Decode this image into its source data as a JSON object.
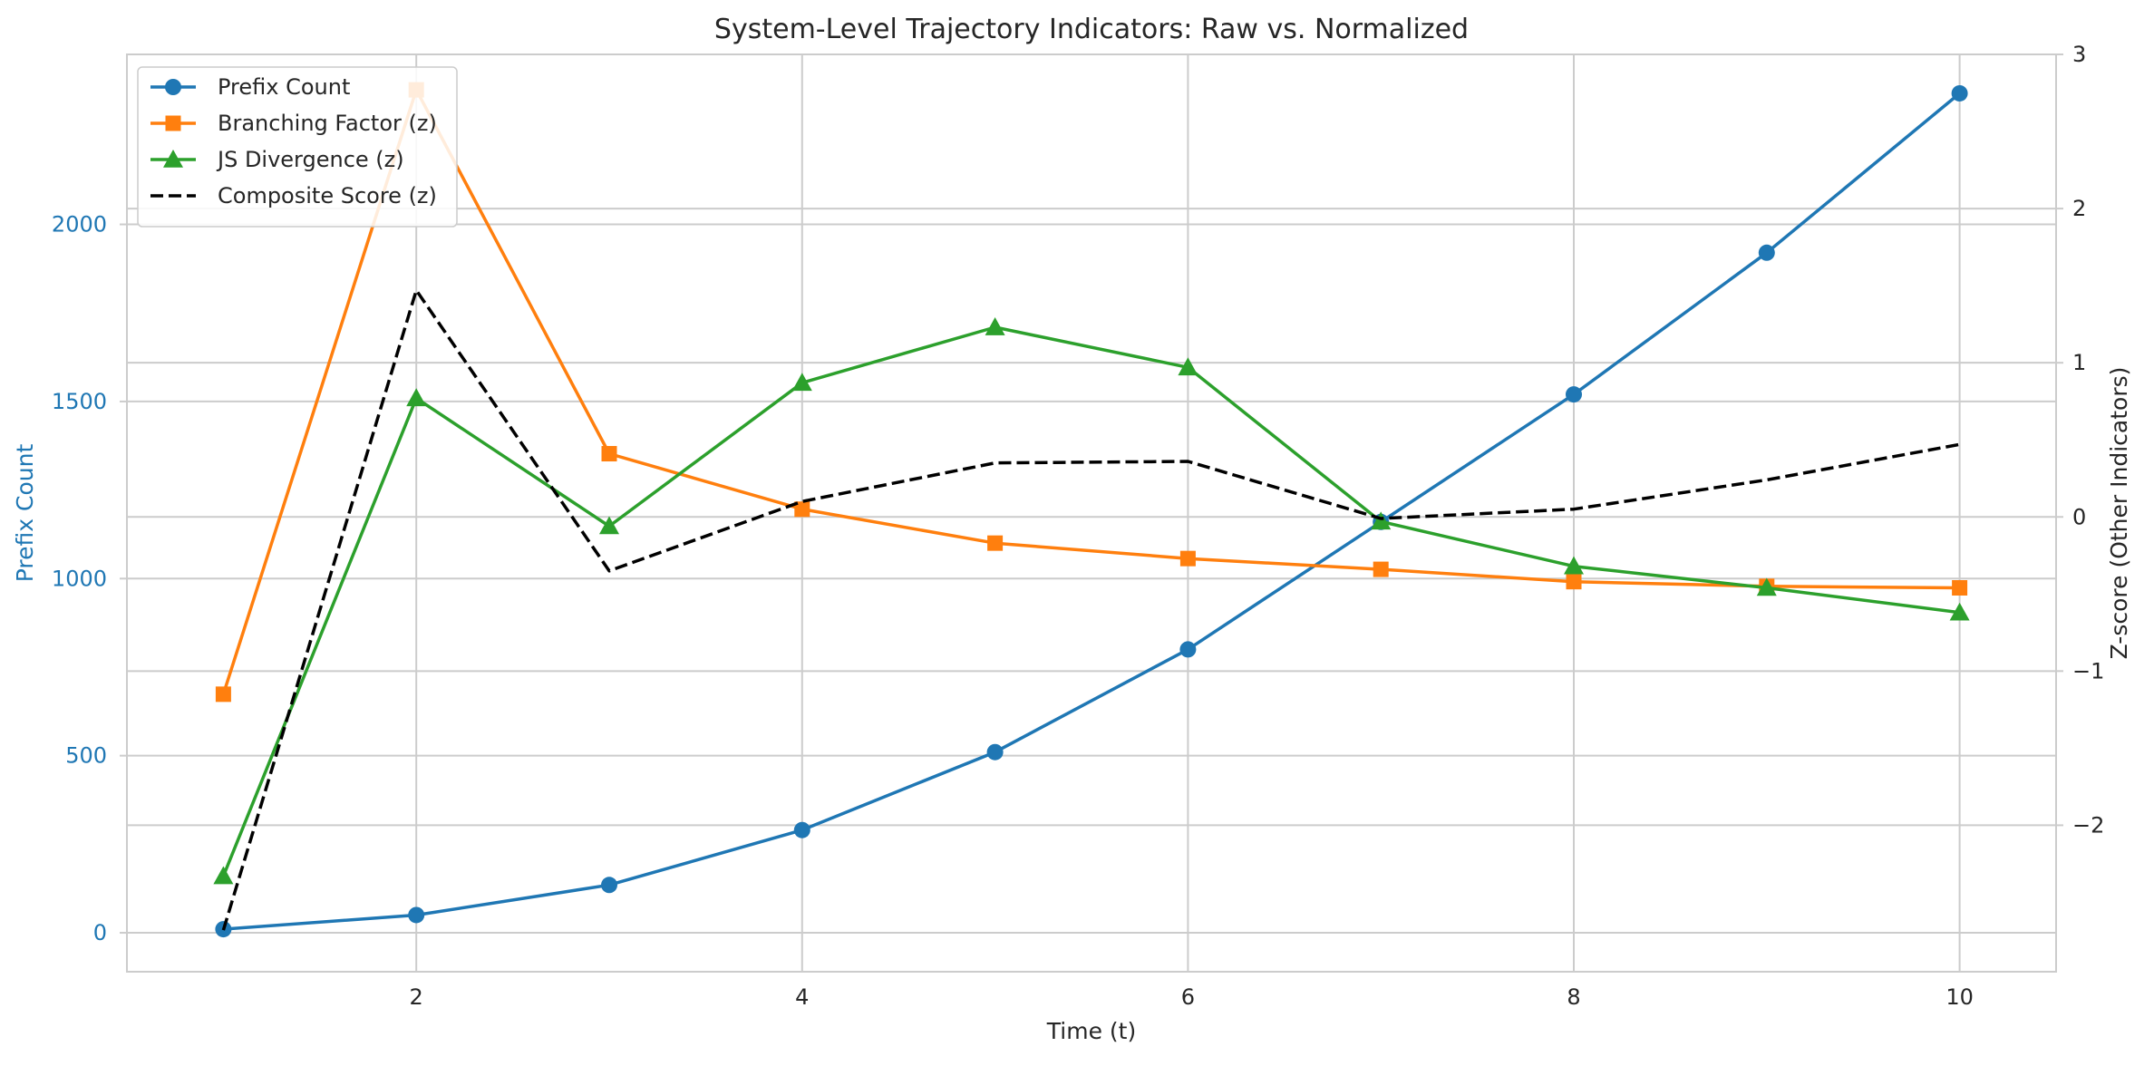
{
  "chart_data": {
    "type": "line",
    "title": "System-Level Trajectory Indicators: Raw vs. Normalized",
    "xlabel": "Time (t)",
    "ylabel_left": "Prefix Count",
    "ylabel_right": "Z-score (Other Indicators)",
    "x": [
      1,
      2,
      3,
      4,
      5,
      6,
      7,
      8,
      9,
      10
    ],
    "xlim": [
      0.5,
      10.5
    ],
    "ylim_left": [
      -110,
      2480
    ],
    "ylim_right": [
      -2.95,
      3.0
    ],
    "xticks": [
      "2",
      "4",
      "6",
      "8",
      "10"
    ],
    "yticks_left": [
      "0",
      "500",
      "1000",
      "1500",
      "2000"
    ],
    "yticks_right": [
      "−2",
      "−1",
      "0",
      "1",
      "2",
      "3"
    ],
    "grid": true,
    "legend_position": "top-left",
    "series": [
      {
        "name": "Prefix Count",
        "axis": "left",
        "color": "#1f77b4",
        "marker": "circle",
        "dash": "solid",
        "values": [
          10,
          50,
          135,
          290,
          510,
          800,
          1160,
          1520,
          1920,
          2370
        ]
      },
      {
        "name": "Branching Factor (z)",
        "axis": "right",
        "color": "#ff7f0e",
        "marker": "square",
        "dash": "solid",
        "values": [
          -1.15,
          2.77,
          0.41,
          0.05,
          -0.17,
          -0.27,
          -0.34,
          -0.42,
          -0.45,
          -0.46
        ]
      },
      {
        "name": "JS Divergence (z)",
        "axis": "right",
        "color": "#2ca02c",
        "marker": "triangle",
        "dash": "solid",
        "values": [
          -2.33,
          0.77,
          -0.06,
          0.87,
          1.23,
          0.97,
          -0.03,
          -0.32,
          -0.46,
          -0.62
        ]
      },
      {
        "name": "Composite Score (z)",
        "axis": "right",
        "color": "#000000",
        "marker": "none",
        "dash": "dashed",
        "values": [
          -2.68,
          1.47,
          -0.35,
          0.1,
          0.35,
          0.36,
          -0.01,
          0.05,
          0.24,
          0.47
        ]
      }
    ]
  },
  "colors": {
    "left_axis_label": "#1f77b4",
    "grid": "#cccccc",
    "frame": "#cccccc",
    "text": "#262626"
  }
}
